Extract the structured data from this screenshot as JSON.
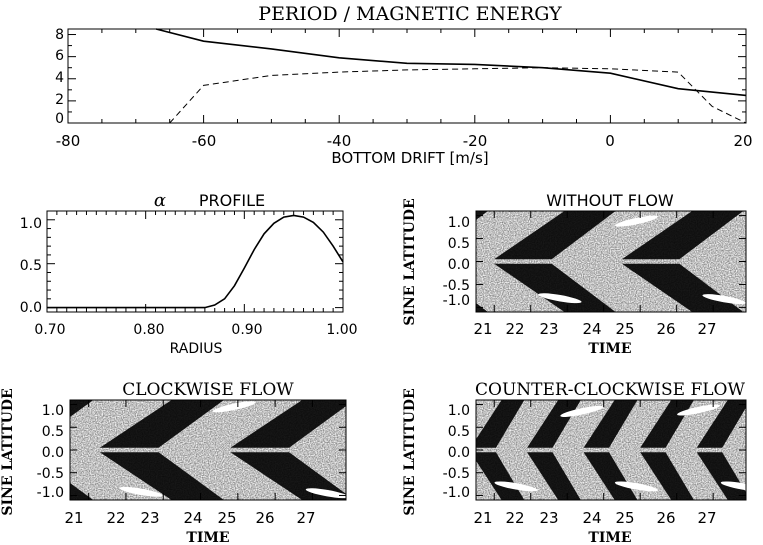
{
  "chart_data": [
    {
      "id": "period",
      "type": "line",
      "title": "PERIOD / MAGNETIC ENERGY",
      "xlabel": "BOTTOM DRIFT [m/s]",
      "ylabel": "",
      "xlim": [
        -80,
        20
      ],
      "ylim": [
        0,
        8.5
      ],
      "xticks": [
        -80,
        -60,
        -40,
        -20,
        0,
        20
      ],
      "yticks": [
        0,
        2,
        4,
        6,
        8
      ],
      "series": [
        {
          "name": "period",
          "style": "solid",
          "x": [
            -67,
            -60,
            -50,
            -40,
            -30,
            -20,
            -10,
            0,
            10,
            20
          ],
          "y": [
            8.5,
            7.4,
            6.7,
            5.9,
            5.4,
            5.3,
            5.0,
            4.5,
            3.1,
            2.5
          ]
        },
        {
          "name": "magnetic energy",
          "style": "dashed",
          "x": [
            -65,
            -60,
            -50,
            -40,
            -30,
            -20,
            -10,
            0,
            10,
            15,
            20
          ],
          "y": [
            0,
            3.4,
            4.3,
            4.6,
            4.8,
            4.9,
            5.0,
            4.9,
            4.6,
            1.5,
            0
          ]
        }
      ]
    },
    {
      "id": "alpha",
      "type": "line",
      "title_symbol": "α",
      "title": "PROFILE",
      "xlabel": "RADIUS",
      "ylabel": "",
      "xlim": [
        0.7,
        1.0
      ],
      "ylim": [
        -0.05,
        1.1
      ],
      "xticks": [
        "0.70",
        "0.80",
        "0.90",
        "1.00"
      ],
      "yticks": [
        "0.0",
        "0.5",
        "1.0"
      ],
      "series": [
        {
          "name": "alpha",
          "style": "solid",
          "x": [
            0.7,
            0.8,
            0.86,
            0.87,
            0.88,
            0.89,
            0.9,
            0.91,
            0.92,
            0.93,
            0.94,
            0.95,
            0.96,
            0.97,
            0.98,
            0.99,
            1.0
          ],
          "y": [
            0.0,
            0.0,
            0.0,
            0.03,
            0.1,
            0.25,
            0.45,
            0.66,
            0.84,
            0.96,
            1.03,
            1.05,
            1.03,
            0.97,
            0.86,
            0.7,
            0.52
          ]
        }
      ]
    },
    {
      "id": "without",
      "type": "heatmap",
      "title": "WITHOUT FLOW",
      "xlabel": "TIME",
      "ylabel": "SINE LATITUDE",
      "xlim": [
        20.5,
        27.9
      ],
      "ylim": [
        -1.1,
        1.1
      ],
      "xticks": [
        "21",
        "22",
        "23",
        "24",
        "25",
        "26",
        "27"
      ],
      "yticks": [
        "1.0",
        "0.5",
        "0.0",
        "-0.5",
        "-1.0"
      ],
      "band_period": 3.5,
      "band_phase": 0,
      "bright_spots": [
        {
          "t": 22.8,
          "lat": -0.8
        },
        {
          "t": 24.9,
          "lat": 0.88
        },
        {
          "t": 27.3,
          "lat": -0.82
        }
      ]
    },
    {
      "id": "clockwise",
      "type": "heatmap",
      "title": "CLOCKWISE FLOW",
      "xlabel": "TIME",
      "ylabel": "SINE LATITUDE",
      "xlim": [
        20.5,
        27.9
      ],
      "ylim": [
        -1.1,
        1.1
      ],
      "xticks": [
        "21",
        "22",
        "23",
        "24",
        "25",
        "26",
        "27"
      ],
      "yticks": [
        "1.0",
        "0.5",
        "0.0",
        "-0.5",
        "-1.0"
      ],
      "band_period": 3.5,
      "band_phase": 0.3,
      "bright_spots": [
        {
          "t": 22.4,
          "lat": -0.92
        },
        {
          "t": 24.9,
          "lat": 0.95
        },
        {
          "t": 27.4,
          "lat": -0.95
        }
      ]
    },
    {
      "id": "counter",
      "type": "heatmap",
      "title": "COUNTER-CLOCKWISE FLOW",
      "xlabel": "TIME",
      "ylabel": "SINE LATITUDE",
      "xlim": [
        20.5,
        27.9
      ],
      "ylim": [
        -1.1,
        1.1
      ],
      "xticks": [
        "21",
        "22",
        "23",
        "24",
        "25",
        "26",
        "27"
      ],
      "yticks": [
        "1.0",
        "0.5",
        "0.0",
        "-0.5",
        "-1.0"
      ],
      "band_period": 1.55,
      "band_phase": 0.2,
      "bright_spots": [
        {
          "t": 21.6,
          "lat": -0.8
        },
        {
          "t": 23.4,
          "lat": 0.85
        },
        {
          "t": 24.9,
          "lat": -0.8
        },
        {
          "t": 26.6,
          "lat": 0.88
        },
        {
          "t": 27.8,
          "lat": -0.8
        }
      ]
    }
  ]
}
